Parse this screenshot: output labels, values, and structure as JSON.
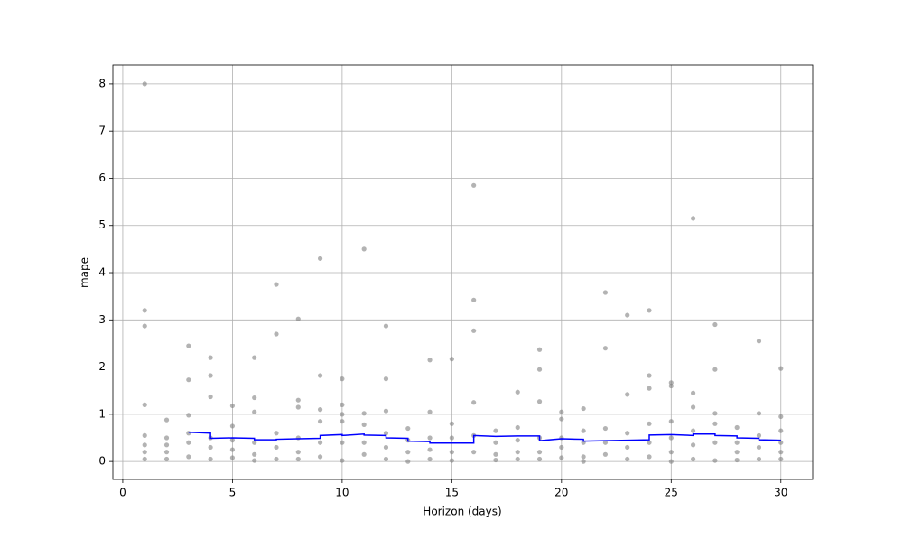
{
  "chart_data": {
    "type": "scatter",
    "xlabel": "Horizon (days)",
    "ylabel": "mape",
    "xlim": [
      -0.45,
      31.45
    ],
    "ylim": [
      -0.38,
      8.4
    ],
    "xticks": [
      0,
      5,
      10,
      15,
      20,
      25,
      30
    ],
    "yticks": [
      0,
      1,
      2,
      3,
      4,
      5,
      6,
      7,
      8
    ],
    "grid": true,
    "point_color": "#808080",
    "points": [
      {
        "x": 1,
        "values": [
          8.0,
          3.2,
          2.87,
          1.2,
          0.55,
          0.35,
          0.2,
          0.05
        ]
      },
      {
        "x": 2,
        "values": [
          0.88,
          0.5,
          0.35,
          0.2,
          0.05
        ]
      },
      {
        "x": 3,
        "values": [
          2.45,
          1.73,
          0.98,
          0.6,
          0.4,
          0.1
        ]
      },
      {
        "x": 4,
        "values": [
          2.2,
          1.82,
          1.37,
          0.5,
          0.3,
          0.05
        ]
      },
      {
        "x": 5,
        "values": [
          1.18,
          0.75,
          0.45,
          0.25,
          0.08
        ]
      },
      {
        "x": 6,
        "values": [
          2.2,
          1.35,
          1.05,
          0.4,
          0.15,
          0.02
        ]
      },
      {
        "x": 7,
        "values": [
          3.75,
          2.7,
          0.6,
          0.3,
          0.05
        ]
      },
      {
        "x": 8,
        "values": [
          3.02,
          1.3,
          1.15,
          0.5,
          0.2,
          0.05
        ]
      },
      {
        "x": 9,
        "values": [
          4.3,
          1.82,
          1.1,
          0.85,
          0.4,
          0.1
        ]
      },
      {
        "x": 10,
        "values": [
          1.75,
          1.2,
          1.0,
          0.85,
          0.4,
          0.02
        ]
      },
      {
        "x": 11,
        "values": [
          4.5,
          1.02,
          0.78,
          0.4,
          0.15
        ]
      },
      {
        "x": 12,
        "values": [
          2.87,
          1.75,
          1.07,
          0.6,
          0.3,
          0.05
        ]
      },
      {
        "x": 13,
        "values": [
          0.7,
          0.45,
          0.2,
          0.0
        ]
      },
      {
        "x": 14,
        "values": [
          2.15,
          1.05,
          0.5,
          0.25,
          0.05
        ]
      },
      {
        "x": 15,
        "values": [
          2.17,
          0.8,
          0.5,
          0.2,
          0.02
        ]
      },
      {
        "x": 16,
        "values": [
          5.85,
          3.42,
          2.77,
          1.25,
          0.55,
          0.2
        ]
      },
      {
        "x": 17,
        "values": [
          0.65,
          0.4,
          0.15,
          0.03
        ]
      },
      {
        "x": 18,
        "values": [
          1.47,
          0.72,
          0.45,
          0.2,
          0.05
        ]
      },
      {
        "x": 19,
        "values": [
          2.37,
          1.95,
          1.27,
          0.5,
          0.2,
          0.05
        ]
      },
      {
        "x": 20,
        "values": [
          1.05,
          0.9,
          0.5,
          0.3,
          0.08
        ]
      },
      {
        "x": 21,
        "values": [
          1.12,
          0.65,
          0.4,
          0.1,
          0.0
        ]
      },
      {
        "x": 22,
        "values": [
          3.58,
          2.4,
          0.7,
          0.4,
          0.15
        ]
      },
      {
        "x": 23,
        "values": [
          3.1,
          1.42,
          0.6,
          0.3,
          0.05
        ]
      },
      {
        "x": 24,
        "values": [
          3.2,
          1.82,
          1.55,
          0.8,
          0.4,
          0.1
        ]
      },
      {
        "x": 25,
        "values": [
          1.67,
          1.6,
          0.85,
          0.5,
          0.2,
          0.0
        ]
      },
      {
        "x": 26,
        "values": [
          5.15,
          1.45,
          1.15,
          0.65,
          0.35,
          0.05
        ]
      },
      {
        "x": 27,
        "values": [
          2.9,
          1.95,
          1.02,
          0.8,
          0.4,
          0.02
        ]
      },
      {
        "x": 28,
        "values": [
          0.72,
          0.4,
          0.2,
          0.03
        ]
      },
      {
        "x": 29,
        "values": [
          2.55,
          1.02,
          0.55,
          0.3,
          0.05
        ]
      },
      {
        "x": 30,
        "values": [
          1.97,
          0.95,
          0.65,
          0.4,
          0.2,
          0.05
        ]
      }
    ],
    "line": {
      "color": "#0000ff",
      "x": [
        3,
        4,
        4,
        5,
        6,
        6,
        7,
        7,
        8,
        9,
        9,
        10,
        10,
        11,
        11,
        12,
        12,
        13,
        13,
        14,
        14,
        15,
        16,
        16,
        17,
        18,
        19,
        19,
        20,
        21,
        21,
        22,
        23,
        24,
        24,
        25,
        26,
        26,
        27,
        27,
        28,
        28,
        29,
        29,
        30
      ],
      "values": [
        0.62,
        0.6,
        0.49,
        0.5,
        0.49,
        0.46,
        0.46,
        0.47,
        0.48,
        0.49,
        0.55,
        0.57,
        0.55,
        0.58,
        0.56,
        0.55,
        0.5,
        0.49,
        0.43,
        0.42,
        0.39,
        0.39,
        0.39,
        0.55,
        0.53,
        0.54,
        0.54,
        0.44,
        0.48,
        0.47,
        0.43,
        0.44,
        0.45,
        0.46,
        0.56,
        0.57,
        0.55,
        0.58,
        0.58,
        0.55,
        0.54,
        0.5,
        0.49,
        0.46,
        0.45
      ]
    }
  }
}
